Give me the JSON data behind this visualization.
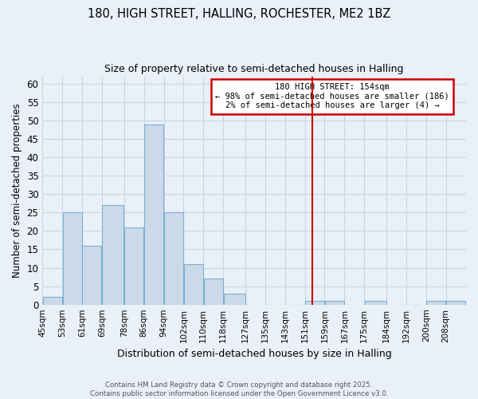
{
  "title1": "180, HIGH STREET, HALLING, ROCHESTER, ME2 1BZ",
  "title2": "Size of property relative to semi-detached houses in Halling",
  "xlabel": "Distribution of semi-detached houses by size in Halling",
  "ylabel": "Number of semi-detached properties",
  "bar_labels": [
    "45sqm",
    "53sqm",
    "61sqm",
    "69sqm",
    "78sqm",
    "86sqm",
    "94sqm",
    "102sqm",
    "110sqm",
    "118sqm",
    "127sqm",
    "135sqm",
    "143sqm",
    "151sqm",
    "159sqm",
    "167sqm",
    "175sqm",
    "184sqm",
    "192sqm",
    "200sqm",
    "208sqm"
  ],
  "bar_values": [
    2,
    25,
    16,
    27,
    21,
    49,
    25,
    11,
    7,
    3,
    0,
    0,
    0,
    1,
    1,
    0,
    1,
    0,
    0,
    1,
    1
  ],
  "bar_color": "#ccd9e8",
  "bar_edge_color": "#7ab0d4",
  "bin_edges": [
    45,
    53,
    61,
    69,
    78,
    86,
    94,
    102,
    110,
    118,
    127,
    135,
    143,
    151,
    159,
    167,
    175,
    184,
    192,
    200,
    208,
    216
  ],
  "property_line_x": 154,
  "annotation_title": "180 HIGH STREET: 154sqm",
  "annotation_line1": "← 98% of semi-detached houses are smaller (186)",
  "annotation_line2": "2% of semi-detached houses are larger (4) →",
  "annotation_box_color": "#ffffff",
  "annotation_box_edge": "#cc0000",
  "line_color": "#cc0000",
  "ylim": [
    0,
    62
  ],
  "yticks": [
    0,
    5,
    10,
    15,
    20,
    25,
    30,
    35,
    40,
    45,
    50,
    55,
    60
  ],
  "footer1": "Contains HM Land Registry data © Crown copyright and database right 2025.",
  "footer2": "Contains public sector information licensed under the Open Government Licence v3.0.",
  "background_color": "#eaf0f8",
  "grid_color": "#c8d4e4"
}
